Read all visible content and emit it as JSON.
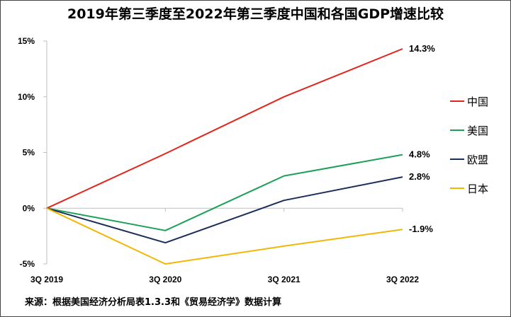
{
  "chart_data": {
    "type": "line",
    "title": "2019年第三季度至2022年第三季度中国和各国GDP增速比较",
    "categories": [
      "3Q 2019",
      "3Q 2020",
      "3Q 2021",
      "3Q 2022"
    ],
    "y_ticks": [
      "15%",
      "10%",
      "5%",
      "0%",
      "-5%"
    ],
    "y_tick_values": [
      15,
      10,
      5,
      0,
      -5
    ],
    "ylim": [
      -5,
      15
    ],
    "grid": false,
    "legend_position": "right",
    "series": [
      {
        "name": "中国",
        "color": "#e3241b",
        "values": [
          0,
          4.9,
          10.0,
          14.3
        ],
        "end_label": "14.3%"
      },
      {
        "name": "美国",
        "color": "#1ca057",
        "values": [
          0,
          -2.0,
          2.9,
          4.8
        ],
        "end_label": "4.8%"
      },
      {
        "name": "欧盟",
        "color": "#1b2d5a",
        "values": [
          0,
          -3.1,
          0.7,
          2.8
        ],
        "end_label": "2.8%"
      },
      {
        "name": "日本",
        "color": "#f2b705",
        "values": [
          0,
          -5.0,
          -3.4,
          -1.9
        ],
        "end_label": "-1.9%"
      }
    ]
  },
  "source_note": "来源：根据美国经济分析局表1.3.3和《贸易经济学》数据计算"
}
